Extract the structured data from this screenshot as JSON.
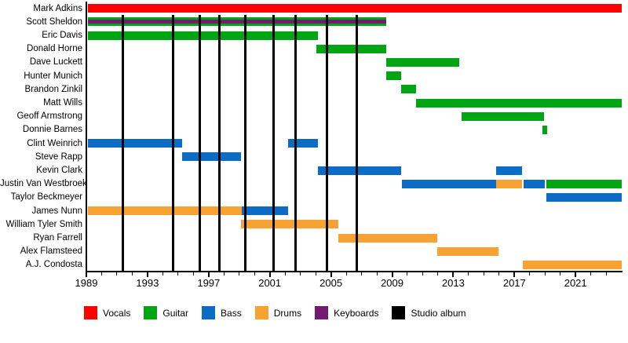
{
  "chart_data": {
    "type": "timeline",
    "description": "Band members timeline (Gantt-style), roles by color, vertical black lines mark studio albums",
    "x_axis": {
      "start": 1989,
      "end": 2024,
      "major_ticks": [
        1989,
        1993,
        1997,
        2001,
        2005,
        2009,
        2013,
        2017,
        2021
      ],
      "minor_tick_step": 1
    },
    "legend": [
      {
        "label": "Vocals",
        "color": "#fe0000"
      },
      {
        "label": "Guitar",
        "color": "#00a513"
      },
      {
        "label": "Bass",
        "color": "#0b6bc5"
      },
      {
        "label": "Drums",
        "color": "#f7a233"
      },
      {
        "label": "Keyboards",
        "color": "#731a72"
      },
      {
        "label": "Studio album",
        "color": "#000000"
      }
    ],
    "album_line_years": [
      1991.4,
      1994.65,
      1996.4,
      1997.7,
      1999.4,
      2001.25,
      2002.7,
      2004.75,
      2006.7
    ],
    "members": [
      {
        "name": "Mark Adkins",
        "periods": [
          {
            "role": "Vocals",
            "start": 1989.1,
            "end": 2024
          }
        ]
      },
      {
        "name": "Scott Sheldon",
        "periods": [
          {
            "role": "Guitar",
            "start": 1989.1,
            "end": 2008.6,
            "overlay": "Keyboards"
          }
        ]
      },
      {
        "name": "Eric Davis",
        "periods": [
          {
            "role": "Guitar",
            "start": 1989.1,
            "end": 2004.15
          }
        ]
      },
      {
        "name": "Donald Horne",
        "periods": [
          {
            "role": "Guitar",
            "start": 2004.05,
            "end": 2008.6
          }
        ]
      },
      {
        "name": "Dave Luckett",
        "periods": [
          {
            "role": "Guitar",
            "start": 2008.6,
            "end": 2013.4
          }
        ]
      },
      {
        "name": "Hunter Munich",
        "periods": [
          {
            "role": "Guitar",
            "start": 2008.6,
            "end": 2009.6
          }
        ]
      },
      {
        "name": "Brandon Zinkil",
        "periods": [
          {
            "role": "Guitar",
            "start": 2009.6,
            "end": 2010.55
          }
        ]
      },
      {
        "name": "Matt Wills",
        "periods": [
          {
            "role": "Guitar",
            "start": 2010.55,
            "end": 2024
          }
        ]
      },
      {
        "name": "Geoff Armstrong",
        "periods": [
          {
            "role": "Guitar",
            "start": 2013.55,
            "end": 2018.95
          }
        ]
      },
      {
        "name": "Donnie Barnes",
        "periods": [
          {
            "role": "Guitar",
            "start": 2018.85,
            "end": 2019.15
          }
        ]
      },
      {
        "name": "Clint Weinrich",
        "periods": [
          {
            "role": "Bass",
            "start": 1989.1,
            "end": 1995.25
          },
          {
            "role": "Bass",
            "start": 2002.2,
            "end": 2004.15
          }
        ]
      },
      {
        "name": "Steve Rapp",
        "periods": [
          {
            "role": "Bass",
            "start": 1995.25,
            "end": 1999.1
          }
        ]
      },
      {
        "name": "Kevin Clark",
        "periods": [
          {
            "role": "Bass",
            "start": 2004.15,
            "end": 2009.6
          },
          {
            "role": "Bass",
            "start": 2015.8,
            "end": 2017.5
          }
        ]
      },
      {
        "name": "Justin Van Westbroek",
        "periods": [
          {
            "role": "Bass",
            "start": 2009.65,
            "end": 2015.8
          },
          {
            "role": "Drums",
            "start": 2015.8,
            "end": 2017.5
          },
          {
            "role": "Bass",
            "start": 2017.6,
            "end": 2019.0
          },
          {
            "role": "Guitar",
            "start": 2019.1,
            "end": 2024
          }
        ]
      },
      {
        "name": "Taylor Beckmeyer",
        "periods": [
          {
            "role": "Bass",
            "start": 2019.1,
            "end": 2024
          }
        ]
      },
      {
        "name": "James Nunn",
        "periods": [
          {
            "role": "Drums",
            "start": 1989.1,
            "end": 1999.15
          },
          {
            "role": "Bass",
            "start": 1999.15,
            "end": 2002.2
          }
        ]
      },
      {
        "name": "William Tyler Smith",
        "periods": [
          {
            "role": "Drums",
            "start": 1999.1,
            "end": 2005.5
          }
        ]
      },
      {
        "name": "Ryan Farrell",
        "periods": [
          {
            "role": "Drums",
            "start": 2005.5,
            "end": 2011.95
          }
        ]
      },
      {
        "name": "Alex Flamsteed",
        "periods": [
          {
            "role": "Drums",
            "start": 2011.95,
            "end": 2015.95
          }
        ]
      },
      {
        "name": "A.J. Condosta",
        "periods": [
          {
            "role": "Drums",
            "start": 2017.55,
            "end": 2024
          }
        ]
      }
    ]
  }
}
